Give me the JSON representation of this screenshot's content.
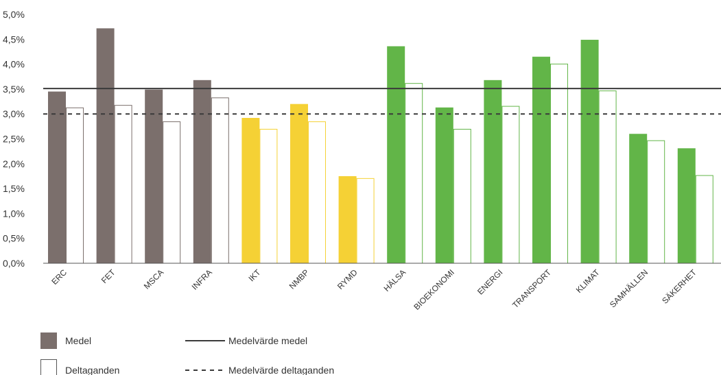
{
  "chart_data": {
    "type": "bar",
    "categories": [
      "ERC",
      "FET",
      "MSCA",
      "INFRA",
      "IKT",
      "NMBP",
      "RYMD",
      "HÄLSA",
      "BIOEKONOMI",
      "ENERGI",
      "TRANSPORT",
      "KLIMAT",
      "SAMHÄLLEN",
      "SÄKERHET"
    ],
    "series": [
      {
        "name": "Medel",
        "style": "filled",
        "values": [
          3.45,
          4.72,
          3.49,
          3.68,
          2.92,
          3.2,
          1.75,
          4.36,
          3.13,
          3.68,
          4.15,
          4.49,
          2.6,
          2.31
        ]
      },
      {
        "name": "Deltaganden",
        "style": "outline",
        "values": [
          3.13,
          3.18,
          2.85,
          3.33,
          2.7,
          2.85,
          1.71,
          3.62,
          2.7,
          3.16,
          4.01,
          3.47,
          2.47,
          1.77
        ]
      }
    ],
    "category_colors": [
      "#7b6f6c",
      "#7b6f6c",
      "#7b6f6c",
      "#7b6f6c",
      "#f5d135",
      "#f5d135",
      "#f5d135",
      "#62b548",
      "#62b548",
      "#62b548",
      "#62b548",
      "#62b548",
      "#62b548",
      "#62b548"
    ],
    "reference_lines": [
      {
        "name": "Medelvärde medel",
        "value": 3.51,
        "style": "solid"
      },
      {
        "name": "Medelvärde deltaganden",
        "value": 3.0,
        "style": "dashed"
      }
    ],
    "y_ticks": [
      "0,0%",
      "0,5%",
      "1,0%",
      "1,5%",
      "2,0%",
      "2,5%",
      "3,0%",
      "3,5%",
      "4,0%",
      "4,5%",
      "5,0%"
    ],
    "ylim": [
      0,
      5
    ],
    "title": "",
    "xlabel": "",
    "ylabel": "",
    "grid": false,
    "legend_placement": "bottom-left"
  },
  "legend": {
    "medel": "Medel",
    "deltaganden": "Deltaganden",
    "medelvarde_medel": "Medelvärde medel",
    "medelvarde_deltaganden": "Medelvärde deltaganden"
  },
  "colors": {
    "legend_swatch": "#7b6f6c",
    "reference_line": "#3a3a3a",
    "axis": "#555555"
  }
}
